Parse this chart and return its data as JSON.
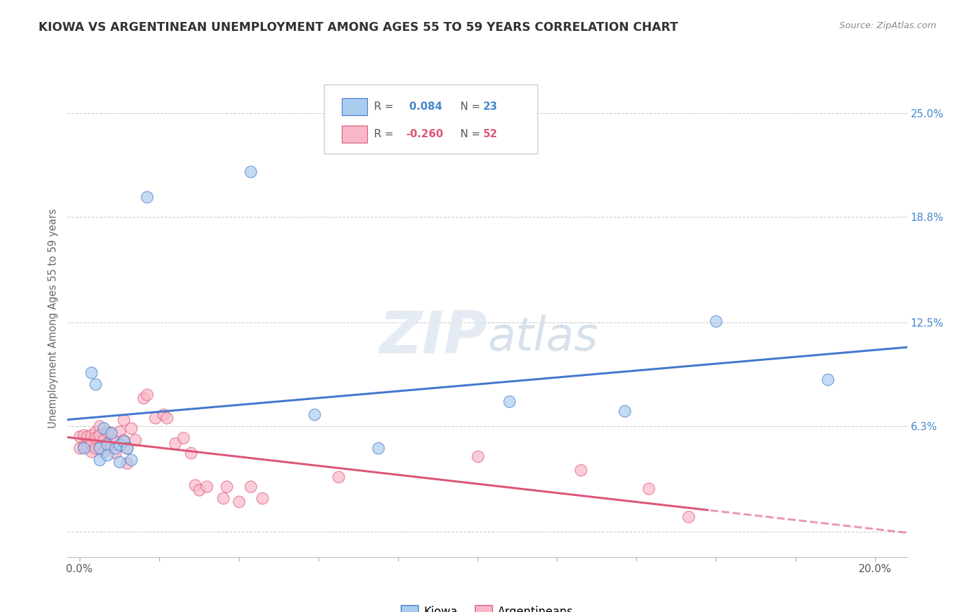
{
  "title": "KIOWA VS ARGENTINEAN UNEMPLOYMENT AMONG AGES 55 TO 59 YEARS CORRELATION CHART",
  "source": "Source: ZipAtlas.com",
  "ylabel": "Unemployment Among Ages 55 to 59 years",
  "xlim": [
    -0.003,
    0.208
  ],
  "ylim": [
    -0.015,
    0.27
  ],
  "kiowa_R": "0.084",
  "kiowa_N": "23",
  "arg_R": "-0.260",
  "arg_N": "52",
  "kiowa_color": "#aaccee",
  "arg_color": "#f8b8c8",
  "kiowa_line_color": "#4477cc",
  "arg_line_color": "#dd5577",
  "watermark_zip": "ZIP",
  "watermark_atlas": "atlas",
  "kiowa_points_x": [
    0.001,
    0.003,
    0.004,
    0.005,
    0.005,
    0.006,
    0.007,
    0.007,
    0.008,
    0.009,
    0.01,
    0.01,
    0.011,
    0.012,
    0.013,
    0.017,
    0.043,
    0.059,
    0.075,
    0.108,
    0.137,
    0.16,
    0.188
  ],
  "kiowa_points_y": [
    0.05,
    0.095,
    0.088,
    0.05,
    0.043,
    0.062,
    0.052,
    0.046,
    0.059,
    0.05,
    0.052,
    0.042,
    0.054,
    0.05,
    0.043,
    0.2,
    0.215,
    0.07,
    0.05,
    0.078,
    0.072,
    0.126,
    0.091
  ],
  "arg_points_x": [
    0.0,
    0.0,
    0.001,
    0.001,
    0.002,
    0.002,
    0.003,
    0.003,
    0.003,
    0.004,
    0.004,
    0.004,
    0.005,
    0.005,
    0.005,
    0.006,
    0.006,
    0.007,
    0.007,
    0.008,
    0.008,
    0.009,
    0.009,
    0.01,
    0.01,
    0.011,
    0.011,
    0.012,
    0.012,
    0.013,
    0.014,
    0.016,
    0.017,
    0.019,
    0.021,
    0.022,
    0.024,
    0.026,
    0.028,
    0.029,
    0.03,
    0.032,
    0.036,
    0.037,
    0.04,
    0.043,
    0.046,
    0.065,
    0.1,
    0.126,
    0.143,
    0.153
  ],
  "arg_points_y": [
    0.057,
    0.05,
    0.058,
    0.051,
    0.057,
    0.051,
    0.058,
    0.053,
    0.048,
    0.06,
    0.056,
    0.05,
    0.063,
    0.058,
    0.051,
    0.055,
    0.048,
    0.06,
    0.053,
    0.059,
    0.051,
    0.054,
    0.047,
    0.06,
    0.052,
    0.067,
    0.055,
    0.05,
    0.041,
    0.062,
    0.055,
    0.08,
    0.082,
    0.068,
    0.07,
    0.068,
    0.053,
    0.056,
    0.047,
    0.028,
    0.025,
    0.027,
    0.02,
    0.027,
    0.018,
    0.027,
    0.02,
    0.033,
    0.045,
    0.037,
    0.026,
    0.009
  ],
  "background_color": "#ffffff",
  "grid_color": "#cccccc"
}
